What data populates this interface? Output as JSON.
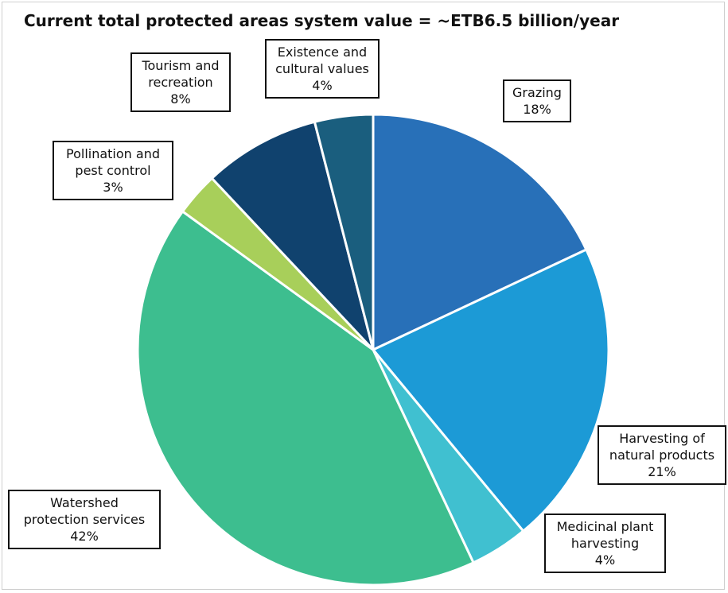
{
  "chart_data": {
    "type": "pie",
    "title": "Current total protected areas system value = ~ETB6.5 billion/year",
    "start_angle_deg": 0,
    "direction": "clockwise",
    "slices": [
      {
        "label_lines": [
          "Grazing"
        ],
        "pct_text": "18%",
        "value": 18,
        "color": "#2870b8"
      },
      {
        "label_lines": [
          "Harvesting of",
          "natural products"
        ],
        "pct_text": "21%",
        "value": 21,
        "color": "#1c9ad6"
      },
      {
        "label_lines": [
          "Medicinal plant",
          "harvesting"
        ],
        "pct_text": "4%",
        "value": 4,
        "color": "#40c0d0"
      },
      {
        "label_lines": [
          "Watershed",
          "protection services"
        ],
        "pct_text": "42%",
        "value": 42,
        "color": "#3dbe8f"
      },
      {
        "label_lines": [
          "Pollination and",
          "pest control"
        ],
        "pct_text": "3%",
        "value": 3,
        "color": "#a8cf5a"
      },
      {
        "label_lines": [
          "Tourism and",
          "recreation"
        ],
        "pct_text": "8%",
        "value": 8,
        "color": "#10426e"
      },
      {
        "label_lines": [
          "Existence and",
          "cultural values"
        ],
        "pct_text": "4%",
        "value": 4,
        "color": "#1a5e7e"
      }
    ]
  }
}
